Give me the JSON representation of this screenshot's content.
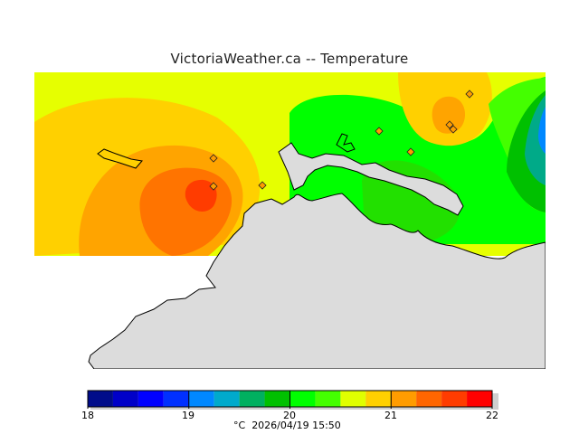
{
  "title": "VictoriaWeather.ca  --  Temperature",
  "legend": {
    "ticks": [
      "18",
      "19",
      "20",
      "21",
      "22"
    ],
    "unit": "°C",
    "timestamp": "2026/04/19 15:50",
    "colors": [
      "#000c8a",
      "#0000c8",
      "#0000ff",
      "#0030ff",
      "#0088ff",
      "#00aacc",
      "#00b060",
      "#00c000",
      "#00ff00",
      "#44ff00",
      "#e0ff00",
      "#ffd000",
      "#ff9c00",
      "#ff6600",
      "#ff3c00",
      "#ff0000"
    ]
  },
  "field_colors": {
    "yellow": "#e6ff00",
    "gold": "#ffd000",
    "orange": "#ffa400",
    "dark_orange": "#ff7400",
    "red_orange": "#ff3c00",
    "green": "#00ff00",
    "mid_green": "#22e000",
    "dark_green": "#00c000",
    "teal": "#00aa88",
    "blue": "#0088ff",
    "land": "#dcdcdc"
  },
  "stations_icon": "diamond-marker-icon"
}
